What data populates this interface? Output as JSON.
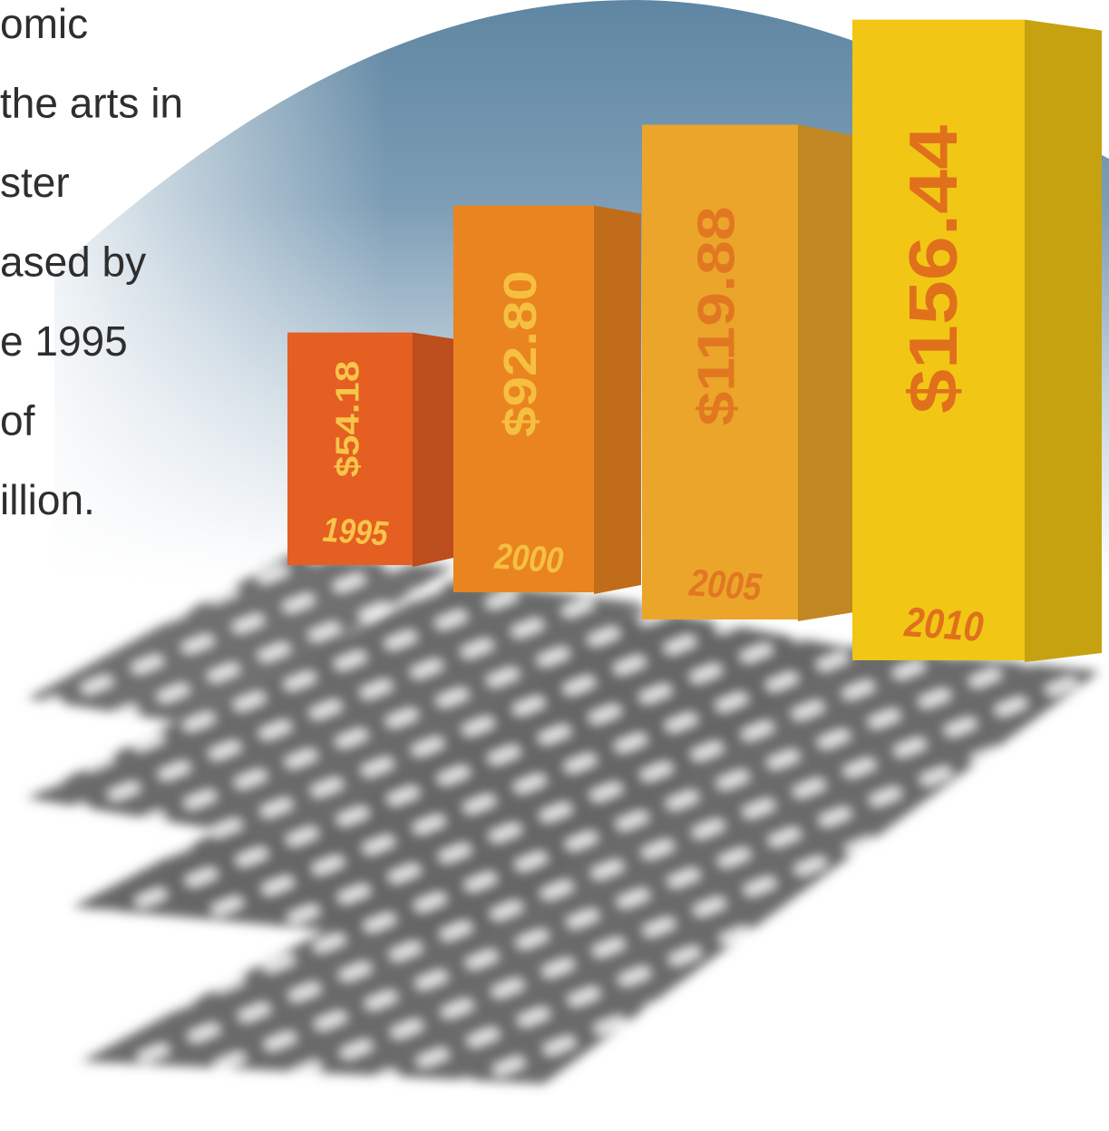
{
  "chart_data": {
    "type": "bar",
    "annotations": [
      "omic",
      "the arts in",
      "ster",
      "ased by",
      "e 1995",
      "of",
      "illion."
    ],
    "categories": [
      "1995",
      "2000",
      "2005",
      "2010"
    ],
    "values": [
      54.18,
      92.8,
      119.88,
      156.44
    ],
    "value_labels": [
      "$54.18",
      "$92.80",
      "$119.88",
      "$156.44"
    ],
    "colors": [
      "#e55e22",
      "#ea8420",
      "#eba52a",
      "#f1c615"
    ]
  }
}
